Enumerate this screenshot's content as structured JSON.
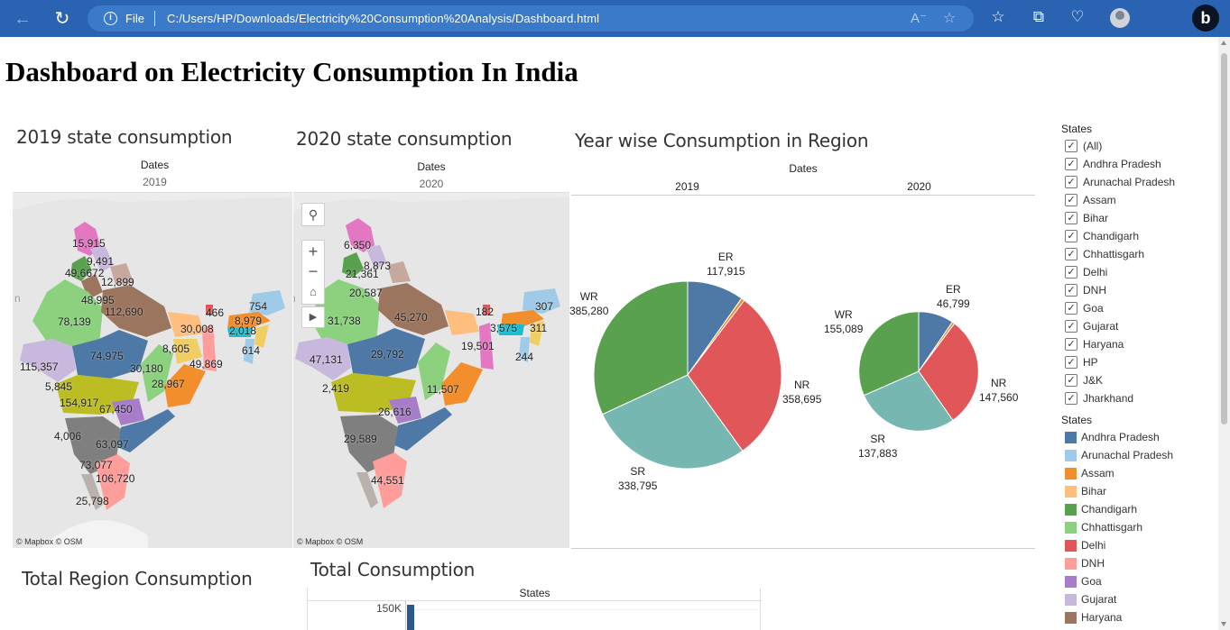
{
  "browser": {
    "file_label": "File",
    "url": "C:/Users/HP/Downloads/Electricity%20Consumption%20Analysis/Dashboard.html",
    "back_icon": "arrow-left-icon",
    "refresh_icon": "refresh-icon",
    "info_icon": "info-icon",
    "read_aloud_icon": "read-aloud-icon",
    "add_favorite_icon": "add-favorite-icon",
    "favorites_icon": "favorites-icon",
    "collections_icon": "collections-icon",
    "health_icon": "heart-pulse-icon",
    "profile_icon": "profile-icon",
    "bing_icon": "bing-icon",
    "bing_letter": "b"
  },
  "page": {
    "title": "Dashboard on Electricity Consumption In India"
  },
  "map2019": {
    "title": "2019 state consumption",
    "header": "Dates",
    "year": "2019",
    "attribution": "© Mapbox  © OSM",
    "labels": [
      "15,915",
      "9,491",
      "49,6672",
      "12,899",
      "48,995",
      "112,690",
      "78,139",
      "466",
      "754",
      "8,979",
      "2,018",
      "30,008",
      "614",
      "8,605",
      "115,357",
      "74,975",
      "30,180",
      "49,869",
      "5,845",
      "28,967",
      "154,917",
      "67,450",
      "4,006",
      "63,097",
      "73,077",
      "106,720",
      "25,798",
      "n"
    ]
  },
  "map2020": {
    "title": "2020 state consumption",
    "header": "Dates",
    "year": "2020",
    "attribution": "© Mapbox  © OSM",
    "labels": [
      "6,350",
      "8,873",
      "21,361",
      "20,587",
      "31,738",
      "45,270",
      "182",
      "307",
      "3,575",
      "311",
      "19,501",
      "244",
      "47,131",
      "29,792",
      "2,419",
      "11,507",
      "26,616",
      "29,589",
      "44,551",
      "n"
    ],
    "controls": {
      "search_icon": "search-icon",
      "zoom_in": "+",
      "zoom_out": "−",
      "home_icon": "home-icon",
      "pan_icon": "play-icon"
    }
  },
  "region_pies": {
    "title": "Year wise Consumption in Region",
    "header": "Dates"
  },
  "chart_data": {
    "type": "pie",
    "title": "Year wise Consumption in Region",
    "facet_header": "Dates",
    "pies": [
      {
        "year": "2019",
        "slices": [
          {
            "region": "ER",
            "value": 117915,
            "value_label": "117,915",
            "color": "#4e79a7"
          },
          {
            "region": "NER",
            "value": 7000,
            "value_label": "",
            "color": "#f28e2b"
          },
          {
            "region": "NR",
            "value": 358695,
            "value_label": "358,695",
            "color": "#e15759"
          },
          {
            "region": "SR",
            "value": 338795,
            "value_label": "338,795",
            "color": "#76b7b2"
          },
          {
            "region": "WR",
            "value": 385280,
            "value_label": "385,280",
            "color": "#59a14f"
          }
        ]
      },
      {
        "year": "2020",
        "slices": [
          {
            "region": "ER",
            "value": 46799,
            "value_label": "46,799",
            "color": "#4e79a7"
          },
          {
            "region": "NER",
            "value": 3500,
            "value_label": "",
            "color": "#f28e2b"
          },
          {
            "region": "NR",
            "value": 147560,
            "value_label": "147,560",
            "color": "#e15759"
          },
          {
            "region": "SR",
            "value": 137883,
            "value_label": "137,883",
            "color": "#76b7b2"
          },
          {
            "region": "WR",
            "value": 155089,
            "value_label": "155,089",
            "color": "#59a14f"
          }
        ]
      }
    ]
  },
  "region_total": {
    "title": "Total Region Consumption"
  },
  "total_consumption": {
    "title": "Total Consumption",
    "header": "States",
    "y_tick": "150K",
    "bar_color": "#2a5a8c"
  },
  "filter": {
    "title": "States",
    "items": [
      "(All)",
      "Andhra Pradesh",
      "Arunachal Pradesh",
      "Assam",
      "Bihar",
      "Chandigarh",
      "Chhattisgarh",
      "Delhi",
      "DNH",
      "Goa",
      "Gujarat",
      "Haryana",
      "HP",
      "J&K",
      "Jharkhand"
    ],
    "check": "✓"
  },
  "color_legend": {
    "title": "States",
    "items": [
      {
        "label": "Andhra Pradesh",
        "color": "#4e79a7"
      },
      {
        "label": "Arunachal Pradesh",
        "color": "#a0cbe8"
      },
      {
        "label": "Assam",
        "color": "#f28e2b"
      },
      {
        "label": "Bihar",
        "color": "#ffbe7d"
      },
      {
        "label": "Chandigarh",
        "color": "#59a14f"
      },
      {
        "label": "Chhattisgarh",
        "color": "#8cd17d"
      },
      {
        "label": "Delhi",
        "color": "#e15759"
      },
      {
        "label": "DNH",
        "color": "#ff9d9a"
      },
      {
        "label": "Goa",
        "color": "#a77dc9"
      },
      {
        "label": "Gujarat",
        "color": "#c9b8dd"
      },
      {
        "label": "Haryana",
        "color": "#9c755f"
      }
    ]
  }
}
